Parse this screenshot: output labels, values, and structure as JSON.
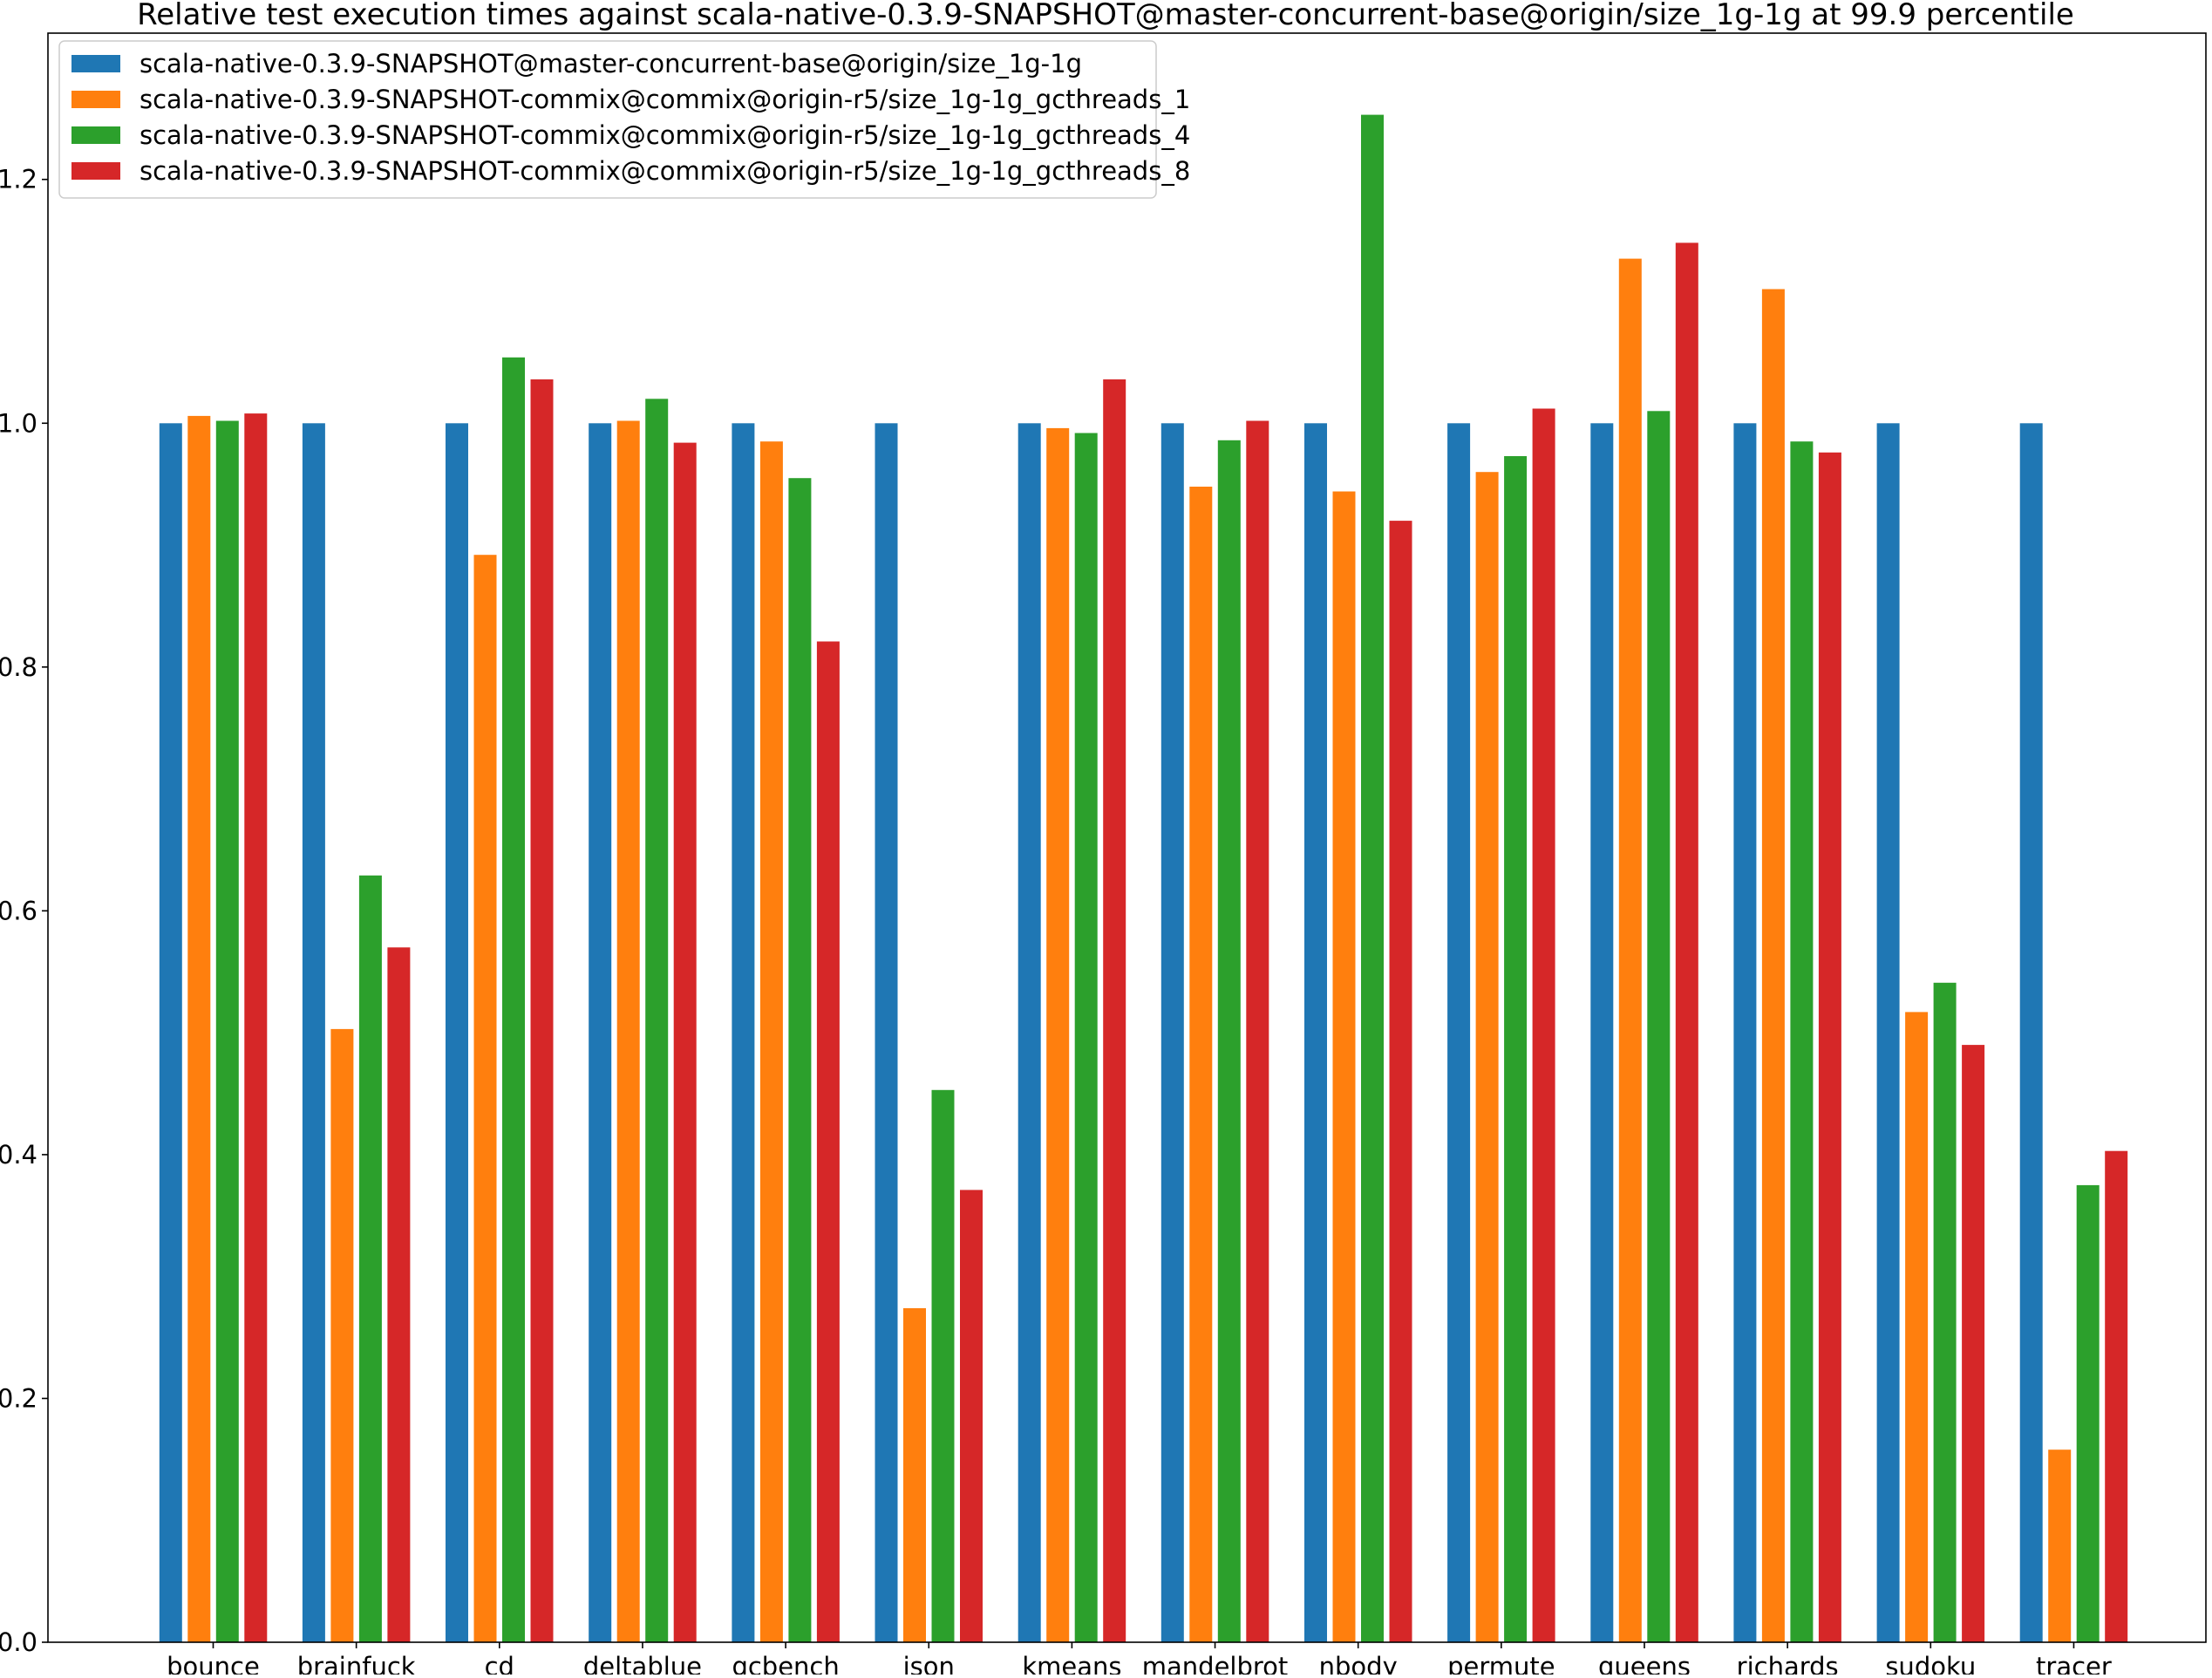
{
  "chart_data": {
    "type": "bar",
    "title": "Relative test execution times against scala-native-0.3.9-SNAPSHOT@master-concurrent-base@origin/size_1g-1g at 99.9 percentile",
    "xlabel": "",
    "ylabel": "",
    "ylim": [
      0,
      1.32
    ],
    "yticks": [
      "0.0",
      "0.2",
      "0.4",
      "0.6",
      "0.8",
      "1.0",
      "1.2"
    ],
    "grid": false,
    "legend_position": "top-left",
    "categories": [
      "bounce",
      "brainfuck",
      "cd",
      "deltablue",
      "gcbench",
      "json",
      "kmeans",
      "mandelbrot",
      "nbody",
      "permute",
      "queens",
      "richards",
      "sudoku",
      "tracer"
    ],
    "series": [
      {
        "name": "scala-native-0.3.9-SNAPSHOT@master-concurrent-base@origin/size_1g-1g",
        "color": "#1f77b4",
        "values": [
          1.0,
          1.0,
          1.0,
          1.0,
          1.0,
          1.0,
          1.0,
          1.0,
          1.0,
          1.0,
          1.0,
          1.0,
          1.0,
          1.0
        ]
      },
      {
        "name": "scala-native-0.3.9-SNAPSHOT-commix@commix@origin-r5/size_1g-1g_gcthreads_1",
        "color": "#ff7f0e",
        "values": [
          1.006,
          0.503,
          0.892,
          1.002,
          0.985,
          0.274,
          0.996,
          0.948,
          0.944,
          0.96,
          1.135,
          1.11,
          0.517,
          0.158
        ]
      },
      {
        "name": "scala-native-0.3.9-SNAPSHOT-commix@commix@origin-r5/size_1g-1g_gcthreads_4",
        "color": "#2ca02c",
        "values": [
          1.002,
          0.629,
          1.054,
          1.02,
          0.955,
          0.453,
          0.992,
          0.986,
          1.253,
          0.973,
          1.01,
          0.985,
          0.541,
          0.375
        ]
      },
      {
        "name": "scala-native-0.3.9-SNAPSHOT-commix@commix@origin-r5/size_1g-1g_gcthreads_8",
        "color": "#d62728",
        "values": [
          1.008,
          0.57,
          1.036,
          0.984,
          0.821,
          0.371,
          1.036,
          1.002,
          0.92,
          1.012,
          1.148,
          0.976,
          0.49,
          0.403
        ]
      }
    ]
  }
}
